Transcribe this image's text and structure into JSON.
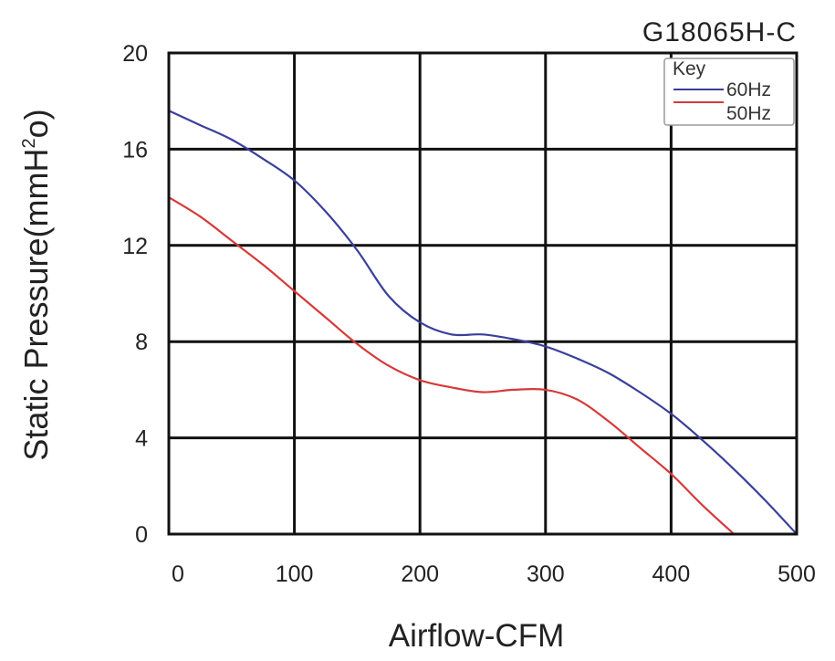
{
  "chart_data": {
    "type": "line",
    "title": "G18065H-C",
    "xlabel": "Airflow-CFM",
    "ylabel": {
      "pre": "Static Pressure(mmH",
      "sup": "2",
      "post": "o)"
    },
    "xlim": [
      0,
      500
    ],
    "ylim": [
      0,
      20
    ],
    "x_ticks": [
      0,
      100,
      200,
      300,
      400,
      500
    ],
    "y_ticks": [
      0,
      4,
      8,
      12,
      16,
      20
    ],
    "grid": true,
    "legend": {
      "title": "Key",
      "position": "top-right"
    },
    "series": [
      {
        "name": "60Hz",
        "color": "#3a3f9a",
        "points": [
          [
            0,
            17.6
          ],
          [
            25,
            17.0
          ],
          [
            50,
            16.4
          ],
          [
            75,
            15.6
          ],
          [
            100,
            14.7
          ],
          [
            125,
            13.4
          ],
          [
            150,
            11.8
          ],
          [
            175,
            9.9
          ],
          [
            200,
            8.8
          ],
          [
            225,
            8.3
          ],
          [
            250,
            8.3
          ],
          [
            275,
            8.1
          ],
          [
            300,
            7.8
          ],
          [
            325,
            7.3
          ],
          [
            350,
            6.7
          ],
          [
            375,
            5.9
          ],
          [
            400,
            5.0
          ],
          [
            425,
            3.9
          ],
          [
            450,
            2.7
          ],
          [
            475,
            1.4
          ],
          [
            500,
            0.0
          ]
        ]
      },
      {
        "name": "50Hz",
        "color": "#d63a3a",
        "points": [
          [
            0,
            14.0
          ],
          [
            25,
            13.2
          ],
          [
            50,
            12.2
          ],
          [
            75,
            11.2
          ],
          [
            100,
            10.1
          ],
          [
            125,
            9.0
          ],
          [
            150,
            7.9
          ],
          [
            175,
            7.0
          ],
          [
            200,
            6.4
          ],
          [
            225,
            6.1
          ],
          [
            250,
            5.9
          ],
          [
            275,
            6.0
          ],
          [
            300,
            6.0
          ],
          [
            325,
            5.6
          ],
          [
            350,
            4.7
          ],
          [
            375,
            3.6
          ],
          [
            400,
            2.5
          ],
          [
            425,
            1.2
          ],
          [
            450,
            0.0
          ]
        ]
      }
    ]
  }
}
